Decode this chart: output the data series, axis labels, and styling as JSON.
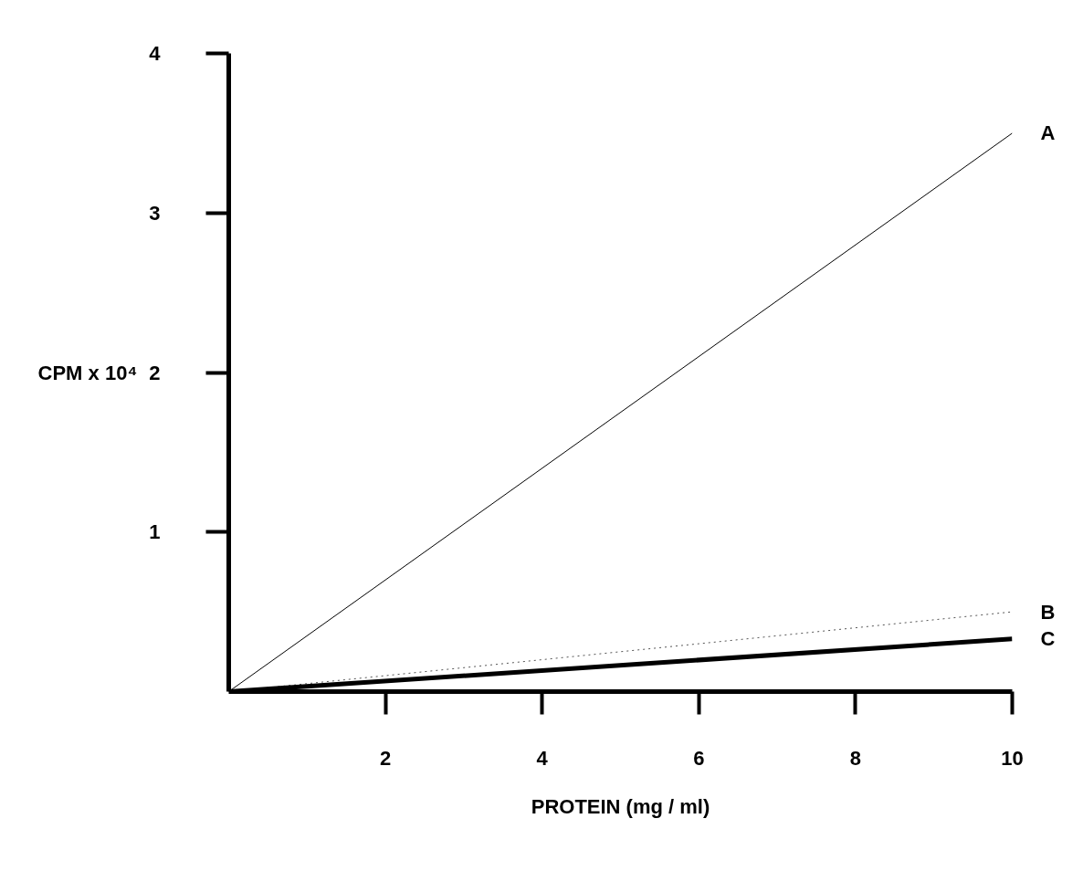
{
  "chart_data": {
    "type": "line",
    "xlabel": "PROTEIN (mg / ml)",
    "ylabel": "CPM x 10⁴",
    "xlim": [
      0,
      10
    ],
    "ylim": [
      0,
      4
    ],
    "xticks": [
      2,
      4,
      6,
      8,
      10
    ],
    "yticks": [
      1,
      2,
      3,
      4
    ],
    "grid": false,
    "marker": "none",
    "x": [
      0,
      10
    ],
    "series": [
      {
        "name": "A",
        "color": "#000000",
        "values": [
          0,
          3.5
        ],
        "line_style": "solid"
      },
      {
        "name": "B",
        "color": "#555555",
        "values": [
          0,
          0.5
        ],
        "line_style": "dotted"
      },
      {
        "name": "C",
        "color": "#000000",
        "values": [
          0,
          0.33
        ],
        "line_style": "solid"
      }
    ]
  }
}
